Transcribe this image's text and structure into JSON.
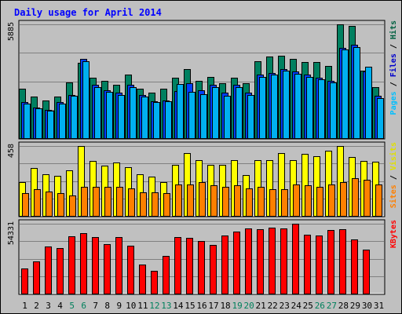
{
  "chart_data": {
    "type": "bar",
    "title": "Daily usage for April 2014",
    "categories": [
      "1",
      "2",
      "3",
      "4",
      "5",
      "6",
      "7",
      "8",
      "9",
      "10",
      "11",
      "12",
      "13",
      "14",
      "15",
      "16",
      "17",
      "18",
      "19",
      "20",
      "21",
      "22",
      "23",
      "24",
      "25",
      "26",
      "27",
      "28",
      "29",
      "30",
      "31"
    ],
    "weekend_days": [
      "5",
      "6",
      "12",
      "13",
      "19",
      "20",
      "26",
      "27"
    ],
    "panels": [
      {
        "name": "hits-files-pages",
        "ymax_label": "5885",
        "ymax": 5885,
        "side_labels": [
          {
            "text": "Pages",
            "color": "#00bfff"
          },
          {
            "text": " / ",
            "color": "#000000"
          },
          {
            "text": "Files",
            "color": "#0000cc"
          },
          {
            "text": " / ",
            "color": "#000000"
          },
          {
            "text": "Hits",
            "color": "#006040"
          }
        ],
        "series": [
          {
            "name": "Hits",
            "color": "#008060",
            "values": [
              2540,
              2150,
              1950,
              2150,
              2870,
              3880,
              3120,
              2980,
              2780,
              3280,
              2540,
              2340,
              2540,
              3120,
              3580,
              2980,
              3180,
              2840,
              3120,
              2840,
              3980,
              4220,
              4280,
              4080,
              3940,
              3940,
              3740,
              5885,
              5800,
              3480,
              2630
            ]
          },
          {
            "name": "Files",
            "color": "#0040ff",
            "values": [
              1860,
              1580,
              1450,
              1860,
              2240,
              4080,
              2740,
              2490,
              2340,
              2740,
              2240,
              1910,
              1960,
              2440,
              2860,
              2490,
              2740,
              2340,
              2740,
              2340,
              3280,
              3380,
              3580,
              3430,
              3280,
              3130,
              2980,
              4680,
              4820,
              3440,
              2190
            ]
          },
          {
            "name": "Pages",
            "color": "#00b0f0",
            "values": [
              1790,
              1540,
              1410,
              1790,
              2180,
              3980,
              2640,
              2390,
              2240,
              2640,
              2170,
              1860,
              1910,
              2790,
              2390,
              2290,
              2640,
              2190,
              2640,
              2240,
              3180,
              3280,
              3480,
              3330,
              3180,
              3040,
              2880,
              4580,
              4720,
              3680,
              2090
            ]
          }
        ]
      },
      {
        "name": "visits-sites",
        "ymax_label": "458",
        "ymax": 458,
        "side_labels": [
          {
            "text": "Sites",
            "color": "#ff8000"
          },
          {
            "text": " / ",
            "color": "#000000"
          },
          {
            "text": "Visits",
            "color": "#e0e000"
          }
        ],
        "series": [
          {
            "name": "Visits",
            "color": "#ffff00",
            "values": [
              222,
              315,
              274,
              261,
              301,
              458,
              359,
              329,
              349,
              319,
              271,
              257,
              219,
              336,
              413,
              363,
              336,
              336,
              366,
              269,
              366,
              366,
              413,
              366,
              406,
              393,
              427,
              458,
              386,
              359,
              356
            ]
          },
          {
            "name": "Sites",
            "color": "#ff8000",
            "values": [
              148,
              174,
              160,
              148,
              134,
              188,
              188,
              188,
              188,
              181,
              154,
              154,
              148,
              208,
              208,
              221,
              201,
              188,
              201,
              181,
              188,
              174,
              174,
              208,
              201,
              188,
              208,
              221,
              248,
              235,
              208
            ]
          }
        ]
      },
      {
        "name": "kbytes",
        "ymax_label": "54331",
        "ymax": 54331,
        "side_labels": [
          {
            "text": "KBytes",
            "color": "#ff0000"
          }
        ],
        "series": [
          {
            "name": "KBytes",
            "color": "#ff0000",
            "values": [
              19600,
              25100,
              36400,
              35300,
              44700,
              46900,
              43900,
              38600,
              44200,
              37000,
              22300,
              17900,
              29300,
              43900,
              43600,
              40800,
              38100,
              45200,
              48000,
              50400,
              50100,
              51200,
              50400,
              54331,
              45700,
              45200,
              49500,
              50100,
              42200,
              34100,
              0
            ]
          }
        ]
      }
    ]
  }
}
